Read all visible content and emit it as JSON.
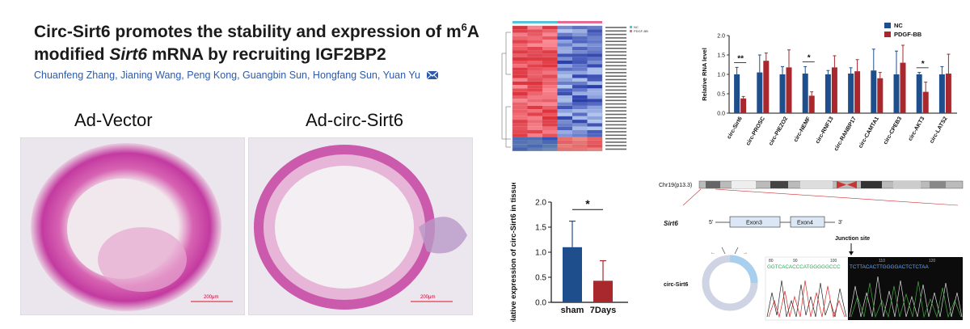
{
  "paper": {
    "title_part1": "Circ-Sirt6 promotes the stability and expression of m",
    "title_sup": "6",
    "title_part2": "A modified ",
    "title_gene": "Sirt6",
    "title_part3": " mRNA by recruiting IGF2BP2",
    "authors": "Chuanfeng Zhang, Jianing Wang, Peng Kong, Guangbin Sun, Hongfang Sun, Yuan Yu",
    "mail_icon": "envelope-icon"
  },
  "histology": {
    "left_label": "Ad-Vector",
    "right_label": "Ad-circ-Sirt6",
    "scale_bar": "200μm"
  },
  "heatmap": {
    "legend": [
      "NC",
      "PDGF-BB"
    ],
    "columns": 6
  },
  "chart_data": [
    {
      "type": "bar",
      "title": "",
      "ylabel": "Relative RNA level",
      "ylim": [
        0,
        2.0
      ],
      "yticks": [
        "0.0",
        "0.5",
        "1.0",
        "1.5",
        "2.0"
      ],
      "categories": [
        "circ-Sirt6",
        "circ-PROSC",
        "circ-PIEZO2",
        "circ-NEMF",
        "circ-RNF13",
        "circ-RANBP17",
        "circ-CAMTA1",
        "circ-CPEB3",
        "circ-AKT3",
        "circ-LATS2"
      ],
      "series": [
        {
          "name": "NC",
          "color": "#1f4e8c",
          "values": [
            1.0,
            1.05,
            1.0,
            1.02,
            1.0,
            1.02,
            1.1,
            1.0,
            1.0,
            1.0
          ],
          "errors": [
            0.18,
            0.45,
            0.2,
            0.18,
            0.1,
            0.15,
            0.55,
            0.6,
            0.05,
            0.2
          ]
        },
        {
          "name": "PDGF-BB",
          "color": "#a8282e",
          "values": [
            0.38,
            1.35,
            1.18,
            0.45,
            1.18,
            1.08,
            0.9,
            1.3,
            0.55,
            1.02
          ],
          "errors": [
            0.05,
            0.2,
            0.45,
            0.1,
            0.3,
            0.3,
            0.15,
            0.45,
            0.25,
            0.5
          ]
        }
      ],
      "significance": [
        {
          "category": "circ-Sirt6",
          "label": "**"
        },
        {
          "category": "circ-NEMF",
          "label": "*"
        },
        {
          "category": "circ-AKT3",
          "label": "*"
        }
      ],
      "legend_position": "top-right"
    },
    {
      "type": "bar",
      "title": "",
      "ylabel": "Relative expression of circ-Sirt6 in tissue",
      "ylim": [
        0,
        2.0
      ],
      "yticks": [
        "0.0",
        "0.5",
        "1.0",
        "1.5",
        "2.0"
      ],
      "categories": [
        "sham",
        "7Days"
      ],
      "values": [
        1.1,
        0.43
      ],
      "errors": [
        0.52,
        0.4
      ],
      "colors": [
        "#1f4e8c",
        "#a8282e"
      ],
      "significance": "*"
    }
  ],
  "genome": {
    "chr_label": "Chr19(p13.3)",
    "gene": "Sirt6",
    "five_prime": "5'",
    "three_prime": "3'",
    "exon_a": "Exon3",
    "exon_b": "Exon4",
    "circ_label": "circ-Sirt6",
    "junction_label": "Junction site",
    "seq_left": "GGTCACACCCATGGGGGCCC",
    "seq_right": "TCTTACACTTGGGGACTCTCTAA",
    "seq_ticks": [
      "80",
      "90",
      "100",
      "110",
      "120"
    ]
  }
}
